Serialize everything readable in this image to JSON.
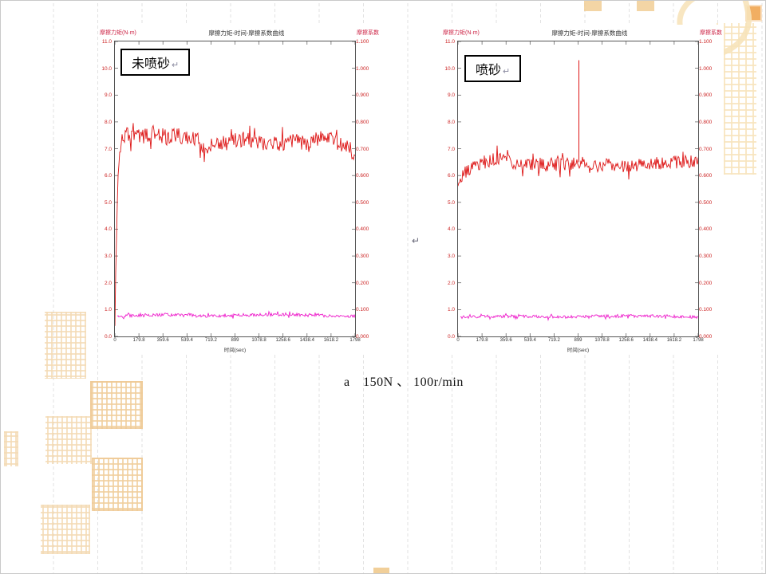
{
  "page": {
    "caption": "a　150N 、 100r/min",
    "center_return_mark": "↵"
  },
  "chart_data": [
    {
      "type": "line",
      "title": "摩擦力矩-时间-摩擦系数曲线",
      "sample_label": "未喷砂",
      "paragraph_mark": "↵",
      "left_axis_title": "摩擦力矩(N·m)",
      "right_axis_title": "摩擦系数",
      "x_axis_title": "时间(sec)",
      "xlim": [
        0,
        1798
      ],
      "ylim_right": [
        0,
        1.1
      ],
      "ylim_left": [
        0,
        11
      ],
      "x_ticks": [
        "0",
        "179.8",
        "359.6",
        "539.4",
        "719.2",
        "899",
        "1078.8",
        "1258.6",
        "1438.4",
        "1618.2",
        "1798"
      ],
      "right_axis_ticks": [
        "1.100",
        "1.000",
        "0.900",
        "0.800",
        "0.700",
        "0.600",
        "0.500",
        "0.400",
        "0.300",
        "0.200",
        "0.100",
        "0.000"
      ],
      "left_axis_ticks": [
        "11.0",
        "10.0",
        "9.0",
        "8.0",
        "7.0",
        "6.0",
        "5.0",
        "4.0",
        "3.0",
        "2.0",
        "1.0",
        "0.0"
      ],
      "grid": false,
      "legend": "none",
      "series": [
        {
          "name": "friction-coefficient",
          "axis": "right",
          "color": "#dd1515",
          "noise": 0.03,
          "anchors": [
            [
              0,
              0.02
            ],
            [
              8,
              0.28
            ],
            [
              18,
              0.52
            ],
            [
              30,
              0.66
            ],
            [
              45,
              0.73
            ],
            [
              80,
              0.75
            ],
            [
              150,
              0.755
            ],
            [
              220,
              0.748
            ],
            [
              300,
              0.757
            ],
            [
              380,
              0.742
            ],
            [
              450,
              0.75
            ],
            [
              520,
              0.74
            ],
            [
              580,
              0.748
            ],
            [
              640,
              0.728
            ],
            [
              672,
              0.7
            ],
            [
              700,
              0.682
            ],
            [
              722,
              0.7
            ],
            [
              748,
              0.728
            ],
            [
              800,
              0.718
            ],
            [
              860,
              0.738
            ],
            [
              920,
              0.728
            ],
            [
              1000,
              0.738
            ],
            [
              1080,
              0.72
            ],
            [
              1160,
              0.73
            ],
            [
              1240,
              0.72
            ],
            [
              1320,
              0.73
            ],
            [
              1400,
              0.72
            ],
            [
              1480,
              0.728
            ],
            [
              1560,
              0.738
            ],
            [
              1640,
              0.728
            ],
            [
              1700,
              0.715
            ],
            [
              1755,
              0.7
            ],
            [
              1798,
              0.682
            ]
          ]
        },
        {
          "name": "friction-torque",
          "axis": "left",
          "color": "#ee22cc",
          "noise": 0.06,
          "anchors": [
            [
              16,
              0.72
            ],
            [
              120,
              0.78
            ],
            [
              300,
              0.8
            ],
            [
              520,
              0.82
            ],
            [
              700,
              0.74
            ],
            [
              760,
              0.78
            ],
            [
              1000,
              0.8
            ],
            [
              1300,
              0.82
            ],
            [
              1550,
              0.78
            ],
            [
              1798,
              0.74
            ]
          ]
        }
      ]
    },
    {
      "type": "line",
      "title": "摩擦力矩-时间-摩擦系数曲线",
      "sample_label": "喷砂",
      "paragraph_mark": "↵",
      "left_axis_title": "摩擦力矩(N·m)",
      "right_axis_title": "摩擦系数",
      "x_axis_title": "时间(sec)",
      "xlim": [
        0,
        1798
      ],
      "ylim_right": [
        0,
        1.1
      ],
      "ylim_left": [
        0,
        11
      ],
      "x_ticks": [
        "0",
        "179.8",
        "359.6",
        "539.4",
        "719.2",
        "899",
        "1078.8",
        "1258.6",
        "1438.4",
        "1618.2",
        "1798"
      ],
      "right_axis_ticks": [
        "1.100",
        "1.000",
        "0.900",
        "0.800",
        "0.700",
        "0.600",
        "0.500",
        "0.400",
        "0.300",
        "0.200",
        "0.100",
        "0.000"
      ],
      "left_axis_ticks": [
        "11.0",
        "10.0",
        "9.0",
        "8.0",
        "7.0",
        "6.0",
        "5.0",
        "4.0",
        "3.0",
        "2.0",
        "1.0",
        "0.0"
      ],
      "grid": false,
      "legend": "none",
      "series": [
        {
          "name": "friction-coefficient",
          "axis": "right",
          "color": "#dd1515",
          "noise": 0.024,
          "spike": [
            905,
            1.03
          ],
          "anchors": [
            [
              0,
              0.565
            ],
            [
              12,
              0.585
            ],
            [
              30,
              0.6
            ],
            [
              60,
              0.615
            ],
            [
              100,
              0.625
            ],
            [
              150,
              0.638
            ],
            [
              210,
              0.652
            ],
            [
              270,
              0.66
            ],
            [
              340,
              0.658
            ],
            [
              420,
              0.648
            ],
            [
              500,
              0.64
            ],
            [
              580,
              0.645
            ],
            [
              660,
              0.64
            ],
            [
              740,
              0.645
            ],
            [
              820,
              0.642
            ],
            [
              900,
              0.65
            ],
            [
              980,
              0.645
            ],
            [
              1060,
              0.635
            ],
            [
              1140,
              0.642
            ],
            [
              1220,
              0.635
            ],
            [
              1300,
              0.638
            ],
            [
              1380,
              0.642
            ],
            [
              1460,
              0.65
            ],
            [
              1540,
              0.645
            ],
            [
              1620,
              0.648
            ],
            [
              1700,
              0.652
            ],
            [
              1798,
              0.655
            ]
          ]
        },
        {
          "name": "friction-torque",
          "axis": "left",
          "color": "#ee22cc",
          "noise": 0.055,
          "anchors": [
            [
              14,
              0.7
            ],
            [
              200,
              0.74
            ],
            [
              450,
              0.76
            ],
            [
              700,
              0.73
            ],
            [
              900,
              0.74
            ],
            [
              1150,
              0.76
            ],
            [
              1400,
              0.77
            ],
            [
              1650,
              0.74
            ],
            [
              1798,
              0.72
            ]
          ]
        }
      ]
    }
  ]
}
